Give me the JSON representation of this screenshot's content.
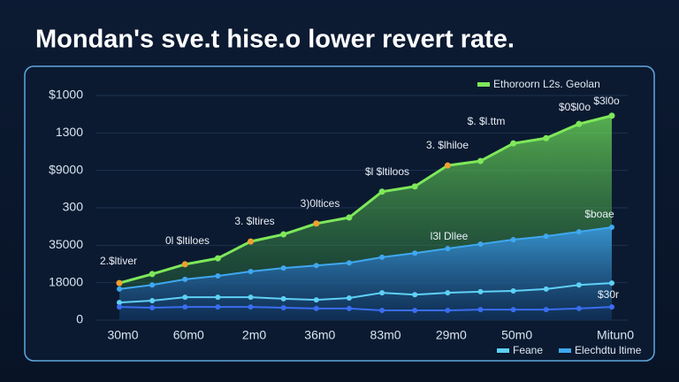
{
  "chart_data": {
    "type": "area-line",
    "title": "Mondan's sve.t hise.o lower revert rate.",
    "categories": [
      "30m0",
      null,
      "60m0",
      null,
      "2m0",
      null,
      "36m0",
      null,
      "83m0",
      null,
      "29m0",
      null,
      "50m0",
      null,
      null,
      "Mitun0"
    ],
    "ylim": [
      0,
      6
    ],
    "yticks": [
      {
        "value": 0,
        "label": "0"
      },
      {
        "value": 1,
        "label": "18000"
      },
      {
        "value": 2,
        "label": "35000"
      },
      {
        "value": 3,
        "label": "300"
      },
      {
        "value": 4,
        "label": "$9000"
      },
      {
        "value": 5,
        "label": "1300"
      },
      {
        "value": 6,
        "label": "$1000"
      }
    ],
    "grid": true,
    "series": [
      {
        "name": "Ethoroorn L2s. Geolan",
        "color": "#7ee85a",
        "values": [
          0.99,
          1.23,
          1.49,
          1.65,
          2.1,
          2.29,
          2.58,
          2.74,
          3.43,
          3.57,
          4.13,
          4.25,
          4.72,
          4.86,
          5.24,
          5.46
        ]
      },
      {
        "name": "Elechdtu ltime",
        "color": "#3fa8f0",
        "values": [
          0.83,
          0.94,
          1.09,
          1.18,
          1.3,
          1.39,
          1.46,
          1.53,
          1.68,
          1.79,
          1.91,
          2.03,
          2.15,
          2.24,
          2.36,
          2.48
        ]
      },
      {
        "name": "Feane",
        "color": "#5fd0f5",
        "values": [
          0.47,
          0.52,
          0.61,
          0.61,
          0.61,
          0.57,
          0.54,
          0.59,
          0.73,
          0.68,
          0.73,
          0.76,
          0.78,
          0.83,
          0.94,
          0.99
        ]
      },
      {
        "color": "#3a6df0",
        "values": [
          0.35,
          0.33,
          0.35,
          0.35,
          0.35,
          0.33,
          0.31,
          0.31,
          0.26,
          0.26,
          0.26,
          0.28,
          0.28,
          0.28,
          0.31,
          0.35
        ]
      }
    ],
    "annotations": [
      "2.$ltiver",
      "0l $ltiloes",
      "3. $ltires",
      "3)0ltices",
      "$l $ltiloos",
      "3. $lhiloe",
      "$. $l.ttm",
      "$0$l0o",
      "$3l0o",
      "$boae",
      "l3l Dllee",
      "$30r"
    ]
  }
}
